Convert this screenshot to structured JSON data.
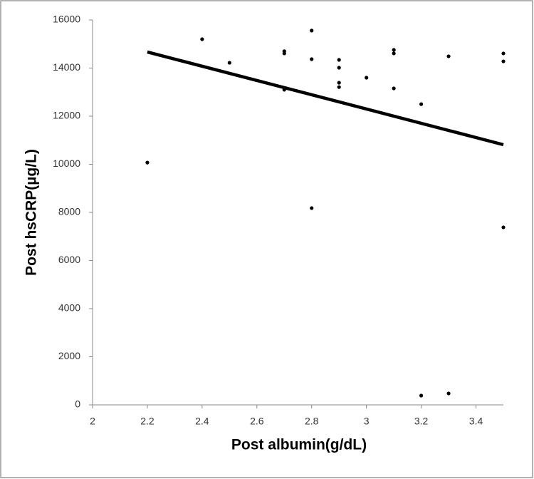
{
  "chart_data": {
    "type": "scatter",
    "xlabel": "Post albumin(g/dL)",
    "ylabel": "Post hsCRP(µg/L)",
    "x": [
      2.2,
      2.4,
      2.5,
      2.7,
      2.7,
      2.7,
      2.8,
      2.8,
      2.8,
      2.9,
      2.9,
      2.9,
      2.9,
      3.0,
      3.1,
      3.1,
      3.1,
      3.2,
      3.2,
      3.3,
      3.3,
      3.5,
      3.5,
      3.5
    ],
    "values": [
      10070,
      15200,
      14220,
      14700,
      14610,
      13100,
      15560,
      14370,
      8180,
      14340,
      14015,
      13390,
      13210,
      13600,
      14755,
      14610,
      13155,
      12500,
      385,
      14490,
      475,
      14610,
      14280,
      7380
    ],
    "color": "#000000",
    "trend": {
      "x": [
        2.2,
        3.5
      ],
      "values": [
        14670,
        10815
      ],
      "color": "#000000"
    },
    "xlim": [
      2,
      3.5
    ],
    "xticks": [
      2,
      2.2,
      2.4,
      2.6,
      2.8,
      3,
      3.2,
      3.4
    ],
    "ylim": [
      0,
      16000
    ],
    "yticks": [
      0,
      2000,
      4000,
      6000,
      8000,
      10000,
      12000,
      14000,
      16000
    ]
  }
}
